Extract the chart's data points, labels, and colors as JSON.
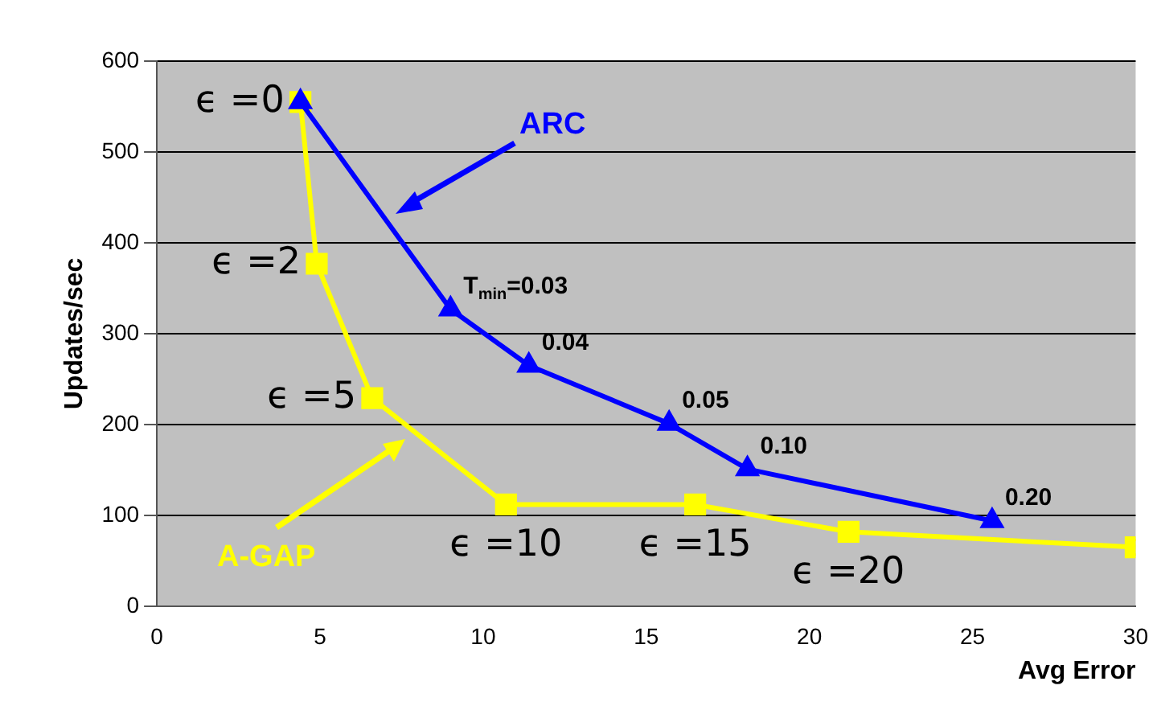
{
  "chart_data": {
    "type": "line",
    "xlabel": "Avg Error",
    "ylabel": "Updates/sec",
    "xlim": [
      0,
      30
    ],
    "xticks": [
      0,
      5,
      10,
      15,
      20,
      25,
      30
    ],
    "ylim": [
      0,
      600
    ],
    "yticks": [
      0,
      100,
      200,
      300,
      400,
      500,
      600
    ],
    "grid": "y",
    "legend": false,
    "series": [
      {
        "name": "ARC",
        "color": "#0000ff",
        "marker": "triangle",
        "x": [
          4.4,
          9,
          11.4,
          15.7,
          18.1,
          25.6
        ],
        "values": [
          555,
          327,
          265,
          201,
          151,
          94
        ]
      },
      {
        "name": "A-GAP",
        "color": "#ffff00",
        "marker": "square",
        "x": [
          4.4,
          4.9,
          6.6,
          10.7,
          16.5,
          21.2,
          30
        ],
        "values": [
          555,
          377,
          229,
          112,
          112,
          82,
          65
        ]
      }
    ],
    "annotations": [
      {
        "text": "ϵ =0",
        "x": 4.4,
        "y": 555
      },
      {
        "text": "ϵ =2",
        "x": 4.9,
        "y": 377
      },
      {
        "text": "ϵ =5",
        "x": 6.6,
        "y": 229
      },
      {
        "text": "ϵ =10",
        "x": 10.7,
        "y": 112
      },
      {
        "text": "ϵ =15",
        "x": 16.5,
        "y": 112
      },
      {
        "text": "ϵ =20",
        "x": 21.2,
        "y": 82
      },
      {
        "text": "T$_{min}$=0.03",
        "x": 9,
        "y": 327
      },
      {
        "text": "0.04",
        "x": 11.4,
        "y": 265
      },
      {
        "text": "0.05",
        "x": 15.7,
        "y": 201
      },
      {
        "text": "0.10",
        "x": 18.1,
        "y": 151
      },
      {
        "text": "0.20",
        "x": 25.6,
        "y": 94
      }
    ]
  }
}
